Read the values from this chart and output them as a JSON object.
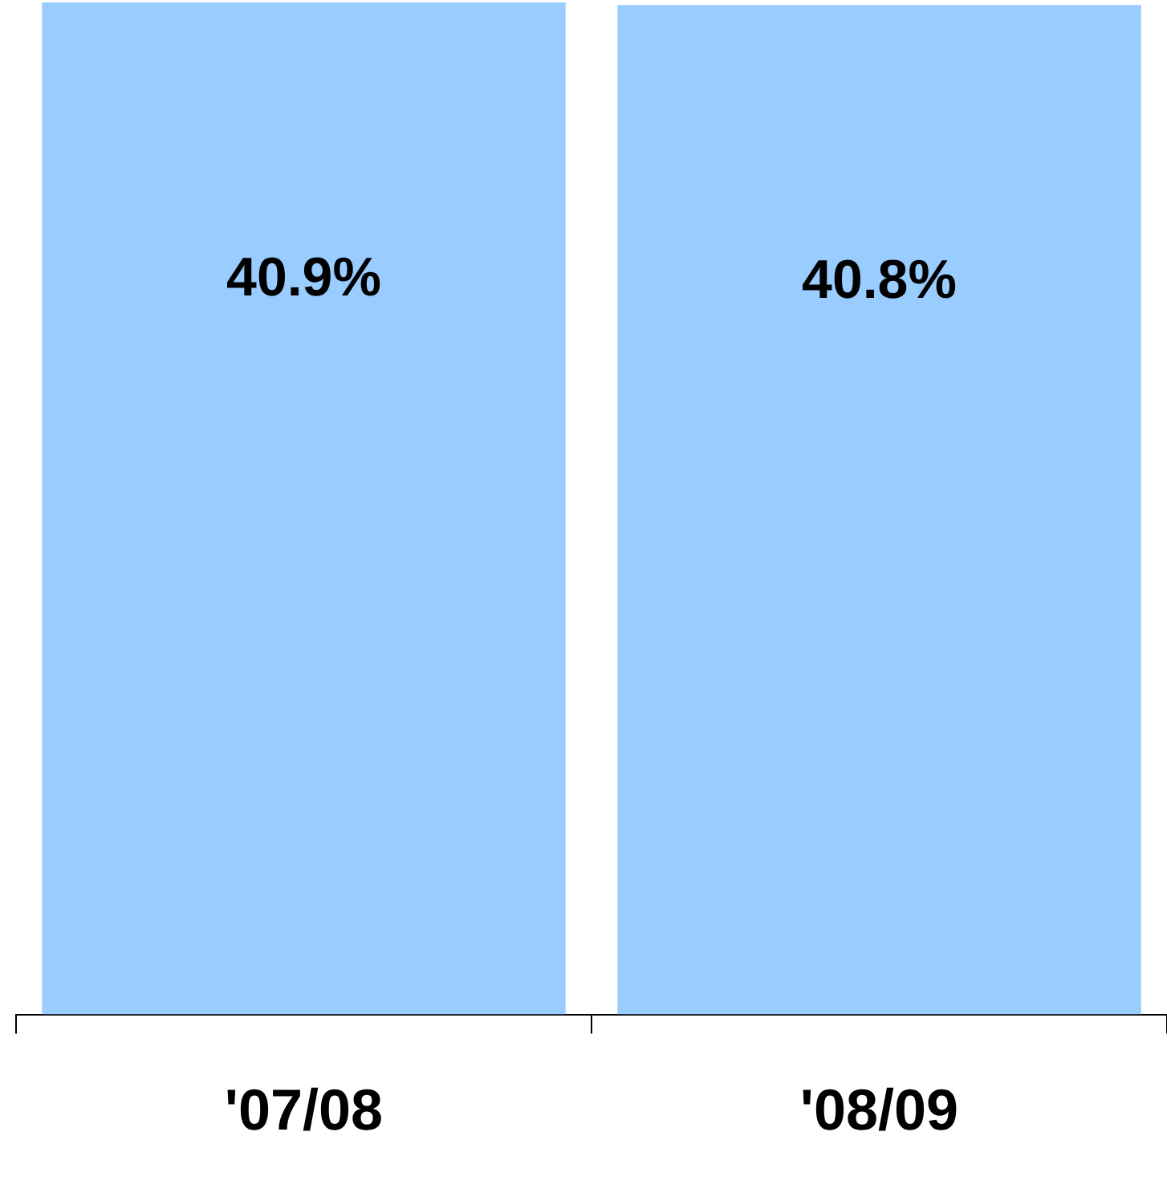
{
  "chart_data": {
    "type": "bar",
    "categories": [
      "'07/08",
      "'08/09"
    ],
    "values": [
      40.9,
      40.8
    ],
    "value_labels": [
      "40.9%",
      "40.8%"
    ],
    "color": "#99ccff",
    "ylim": [
      0,
      41
    ],
    "tick_labels": "x",
    "grid": false,
    "legend": false
  }
}
